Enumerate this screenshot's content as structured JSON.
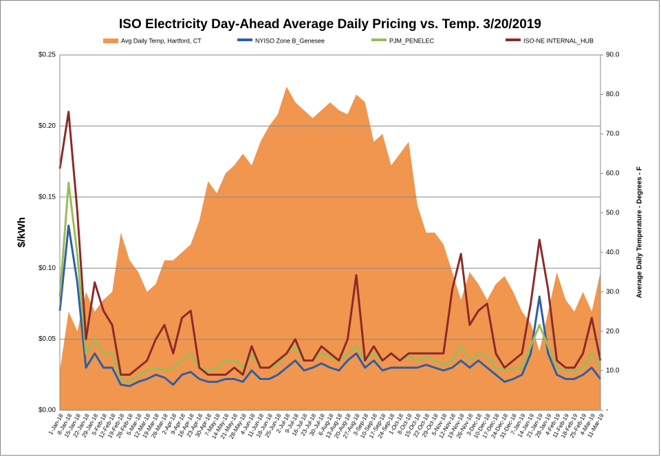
{
  "chart_data": {
    "type": "line",
    "title": "ISO Electricity Day-Ahead Average Daily Pricing vs. Temp. 3/20/2019",
    "y_label": "$/kWh",
    "y2_label": "Average Daily Temperature - Degrees - F",
    "categories": [
      "1-Jan-18",
      "8-Jan-18",
      "15-Jan-18",
      "22-Jan-18",
      "29-Jan-18",
      "5-Feb-18",
      "12-Feb-18",
      "19-Feb-18",
      "26-Feb-18",
      "5-Mar-18",
      "12-Mar-18",
      "19-Mar-18",
      "26-Mar-18",
      "2-Apr-18",
      "9-Apr-18",
      "16-Apr-18",
      "23-Apr-18",
      "30-Apr-18",
      "7-May-18",
      "14-May-18",
      "21-May-18",
      "28-May-18",
      "4-Jun-18",
      "11-Jun-18",
      "18-Jun-18",
      "25-Jun-18",
      "2-Jul-18",
      "9-Jul-18",
      "16-Jul-18",
      "23-Jul-18",
      "30-Jul-18",
      "6-Aug-18",
      "13-Aug-18",
      "20-Aug-18",
      "27-Aug-18",
      "3-Sep-18",
      "10-Sep-18",
      "17-Sep-18",
      "24-Sep-18",
      "1-Oct-18",
      "8-Oct-18",
      "15-Oct-18",
      "22-Oct-18",
      "29-Oct-18",
      "5-Nov-18",
      "12-Nov-18",
      "19-Nov-18",
      "26-Nov-18",
      "3-Dec-18",
      "10-Dec-18",
      "17-Dec-18",
      "24-Dec-18",
      "31-Dec-18",
      "7-Jan-19",
      "14-Jan-19",
      "21-Jan-19",
      "28-Jan-19",
      "4-Feb-19",
      "11-Feb-19",
      "18-Feb-19",
      "25-Feb-19",
      "4-Mar-19",
      "11-Mar-19"
    ],
    "series": [
      {
        "name": "Avg Daily Temp, Hartford, CT",
        "color": "#f0964f",
        "style": "area",
        "axis": "y2",
        "values": [
          10,
          25,
          20,
          30,
          25,
          28,
          30,
          45,
          38,
          35,
          30,
          32,
          38,
          38,
          40,
          42,
          48,
          58,
          55,
          60,
          62,
          65,
          62,
          68,
          72,
          75,
          82,
          78,
          76,
          74,
          76,
          78,
          76,
          75,
          80,
          78,
          68,
          70,
          62,
          65,
          68,
          52,
          45,
          45,
          42,
          35,
          28,
          35,
          32,
          28,
          32,
          34,
          30,
          25,
          22,
          15,
          25,
          35,
          28,
          25,
          30,
          25,
          35
        ]
      },
      {
        "name": "NYISO Zone B_Genesee",
        "color": "#2e5fa3",
        "style": "line",
        "values": [
          0.07,
          0.13,
          0.09,
          0.03,
          0.04,
          0.03,
          0.03,
          0.018,
          0.017,
          0.02,
          0.022,
          0.025,
          0.023,
          0.018,
          0.025,
          0.027,
          0.022,
          0.02,
          0.02,
          0.022,
          0.022,
          0.02,
          0.028,
          0.022,
          0.022,
          0.025,
          0.03,
          0.035,
          0.028,
          0.03,
          0.033,
          0.03,
          0.028,
          0.035,
          0.04,
          0.03,
          0.035,
          0.028,
          0.03,
          0.03,
          0.03,
          0.03,
          0.032,
          0.03,
          0.028,
          0.03,
          0.035,
          0.03,
          0.035,
          0.03,
          0.025,
          0.02,
          0.022,
          0.025,
          0.04,
          0.08,
          0.04,
          0.025,
          0.022,
          0.022,
          0.025,
          0.03,
          0.022
        ]
      },
      {
        "name": "PJM_PENELEC",
        "color": "#9bbb59",
        "style": "line",
        "values": [
          0.08,
          0.16,
          0.11,
          0.04,
          0.05,
          0.04,
          0.04,
          0.022,
          0.02,
          0.025,
          0.028,
          0.03,
          0.028,
          0.03,
          0.035,
          0.04,
          0.03,
          0.028,
          0.03,
          0.035,
          0.035,
          0.03,
          0.04,
          0.03,
          0.03,
          0.032,
          0.04,
          0.045,
          0.035,
          0.035,
          0.04,
          0.038,
          0.035,
          0.04,
          0.045,
          0.035,
          0.04,
          0.035,
          0.04,
          0.035,
          0.038,
          0.035,
          0.038,
          0.035,
          0.032,
          0.035,
          0.045,
          0.035,
          0.04,
          0.038,
          0.03,
          0.028,
          0.03,
          0.03,
          0.045,
          0.06,
          0.045,
          0.03,
          0.028,
          0.028,
          0.03,
          0.04,
          0.03
        ]
      },
      {
        "name": "ISO-NE INTERNAL_HUB",
        "color": "#8b2a2a",
        "style": "line",
        "values": [
          0.17,
          0.21,
          0.14,
          0.05,
          0.09,
          0.07,
          0.06,
          0.025,
          0.025,
          0.03,
          0.035,
          0.05,
          0.06,
          0.04,
          0.065,
          0.07,
          0.03,
          0.025,
          0.025,
          0.025,
          0.03,
          0.025,
          0.045,
          0.03,
          0.03,
          0.035,
          0.04,
          0.05,
          0.035,
          0.035,
          0.045,
          0.04,
          0.035,
          0.05,
          0.095,
          0.035,
          0.045,
          0.035,
          0.04,
          0.035,
          0.04,
          0.04,
          0.04,
          0.04,
          0.04,
          0.085,
          0.11,
          0.06,
          0.07,
          0.075,
          0.04,
          0.03,
          0.035,
          0.04,
          0.075,
          0.12,
          0.085,
          0.035,
          0.03,
          0.03,
          0.04,
          0.065,
          0.035
        ]
      }
    ],
    "ylim": [
      0,
      0.25
    ],
    "yticks": [
      {
        "value": 0,
        "label": "$0.00"
      },
      {
        "value": 0.05,
        "label": "$0.05"
      },
      {
        "value": 0.1,
        "label": "$0.10"
      },
      {
        "value": 0.15,
        "label": "$0.15"
      },
      {
        "value": 0.2,
        "label": "$0.20"
      },
      {
        "value": 0.25,
        "label": "$0.25"
      }
    ],
    "y2lim": [
      0,
      90
    ],
    "y2ticks": [
      {
        "value": 0,
        "label": "-"
      },
      {
        "value": 10,
        "label": "10.0"
      },
      {
        "value": 20,
        "label": "20.0"
      },
      {
        "value": 30,
        "label": "30.0"
      },
      {
        "value": 40,
        "label": "40.0"
      },
      {
        "value": 50,
        "label": "50.0"
      },
      {
        "value": 60,
        "label": "60.0"
      },
      {
        "value": 70,
        "label": "70.0"
      },
      {
        "value": 80,
        "label": "80.0"
      },
      {
        "value": 90,
        "label": "90.0"
      }
    ],
    "grid": true,
    "legend": "top"
  }
}
